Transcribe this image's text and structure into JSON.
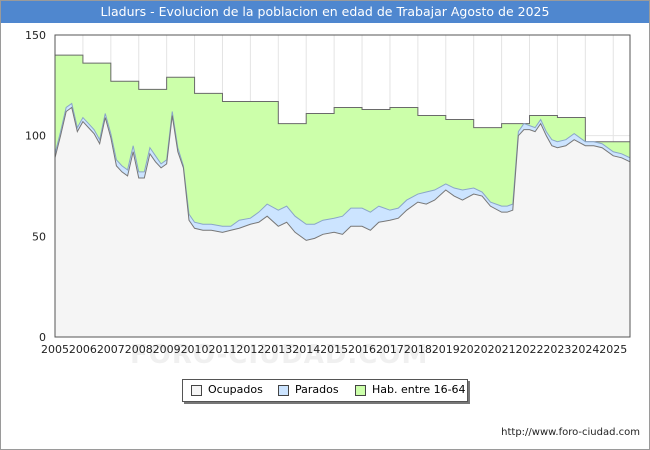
{
  "window": {
    "title": "Lladurs - Evolucion de la poblacion en edad de Trabajar Agosto de 2025"
  },
  "watermark": "FORO-CIUDAD.COM",
  "footer": {
    "url": "http://www.foro-ciudad.com"
  },
  "colors": {
    "title_bar": "#4f87cf",
    "ocupados": "#f5f5f5",
    "parados": "#cce4ff",
    "hab": "#ccffaa",
    "line": "#777777"
  },
  "chart_data": {
    "type": "area",
    "title": "Lladurs - Evolucion de la poblacion en edad de Trabajar Agosto de 2025",
    "xlabel": "",
    "ylabel": "",
    "xlim": [
      2005,
      2025.6
    ],
    "ylim": [
      0,
      150
    ],
    "x_ticks": [
      "2005",
      "2006",
      "2007",
      "2008",
      "2009",
      "2010",
      "2011",
      "2012",
      "2013",
      "2014",
      "2015",
      "2016",
      "2017",
      "2018",
      "2019",
      "2020",
      "2021",
      "2022",
      "2023",
      "2024",
      "2025"
    ],
    "y_ticks": [
      0,
      50,
      100,
      150
    ],
    "grid": true,
    "legend_position": "bottom",
    "legend": [
      "Ocupados",
      "Parados",
      "Hab. entre 16-64"
    ],
    "series": [
      {
        "name": "Hab. entre 16-64",
        "style": "step",
        "x": [
          2005,
          2006,
          2007,
          2008,
          2009,
          2010,
          2011,
          2012,
          2013,
          2014,
          2015,
          2016,
          2017,
          2018,
          2019,
          2020,
          2021,
          2022,
          2023,
          2024
        ],
        "values": [
          140,
          136,
          127,
          123,
          129,
          121,
          117,
          117,
          106,
          111,
          114,
          113,
          114,
          110,
          108,
          104,
          106,
          110,
          109,
          97
        ]
      },
      {
        "name": "Parados",
        "x": [
          2005,
          2005.2,
          2005.4,
          2005.6,
          2005.8,
          2006,
          2006.2,
          2006.4,
          2006.6,
          2006.8,
          2007,
          2007.2,
          2007.4,
          2007.6,
          2007.8,
          2008,
          2008.2,
          2008.4,
          2008.6,
          2008.8,
          2009,
          2009.2,
          2009.4,
          2009.6,
          2009.8,
          2010,
          2010.3,
          2010.6,
          2011,
          2011.3,
          2011.6,
          2012,
          2012.3,
          2012.6,
          2013,
          2013.3,
          2013.6,
          2014,
          2014.3,
          2014.6,
          2015,
          2015.3,
          2015.6,
          2016,
          2016.3,
          2016.6,
          2017,
          2017.3,
          2017.6,
          2018,
          2018.3,
          2018.6,
          2019,
          2019.3,
          2019.6,
          2020,
          2020.3,
          2020.6,
          2021,
          2021.2,
          2021.4,
          2021.6,
          2021.8,
          2022,
          2022.2,
          2022.4,
          2022.6,
          2022.8,
          2023,
          2023.3,
          2023.6,
          2024,
          2024.3,
          2024.6,
          2025,
          2025.3,
          2025.6
        ],
        "values": [
          91,
          102,
          114,
          116,
          104,
          109,
          106,
          103,
          98,
          111,
          101,
          88,
          85,
          83,
          95,
          82,
          82,
          94,
          90,
          86,
          88,
          112,
          94,
          85,
          61,
          57,
          56,
          56,
          55,
          55,
          58,
          59,
          62,
          66,
          63,
          65,
          60,
          56,
          56,
          58,
          59,
          60,
          64,
          64,
          62,
          65,
          63,
          64,
          68,
          71,
          72,
          73,
          76,
          74,
          73,
          74,
          72,
          67,
          65,
          65,
          66,
          102,
          106,
          105,
          104,
          108,
          102,
          98,
          97,
          98,
          101,
          97,
          97,
          96,
          92,
          91,
          89
        ]
      },
      {
        "name": "Ocupados",
        "x": [
          2005,
          2005.2,
          2005.4,
          2005.6,
          2005.8,
          2006,
          2006.2,
          2006.4,
          2006.6,
          2006.8,
          2007,
          2007.2,
          2007.4,
          2007.6,
          2007.8,
          2008,
          2008.2,
          2008.4,
          2008.6,
          2008.8,
          2009,
          2009.2,
          2009.4,
          2009.6,
          2009.8,
          2010,
          2010.3,
          2010.6,
          2011,
          2011.3,
          2011.6,
          2012,
          2012.3,
          2012.6,
          2013,
          2013.3,
          2013.6,
          2014,
          2014.3,
          2014.6,
          2015,
          2015.3,
          2015.6,
          2016,
          2016.3,
          2016.6,
          2017,
          2017.3,
          2017.6,
          2018,
          2018.3,
          2018.6,
          2019,
          2019.3,
          2019.6,
          2020,
          2020.3,
          2020.6,
          2021,
          2021.2,
          2021.4,
          2021.6,
          2021.8,
          2022,
          2022.2,
          2022.4,
          2022.6,
          2022.8,
          2023,
          2023.3,
          2023.6,
          2024,
          2024.3,
          2024.6,
          2025,
          2025.3,
          2025.6
        ],
        "values": [
          89,
          100,
          112,
          114,
          102,
          107,
          104,
          101,
          96,
          109,
          99,
          85,
          82,
          80,
          92,
          79,
          79,
          91,
          87,
          84,
          86,
          110,
          92,
          84,
          58,
          54,
          53,
          53,
          52,
          53,
          54,
          56,
          57,
          60,
          55,
          57,
          52,
          48,
          49,
          51,
          52,
          51,
          55,
          55,
          53,
          57,
          58,
          59,
          63,
          67,
          66,
          68,
          73,
          70,
          68,
          71,
          70,
          65,
          62,
          62,
          63,
          100,
          103,
          103,
          102,
          106,
          100,
          95,
          94,
          95,
          98,
          95,
          95,
          94,
          90,
          89,
          87
        ]
      }
    ]
  }
}
